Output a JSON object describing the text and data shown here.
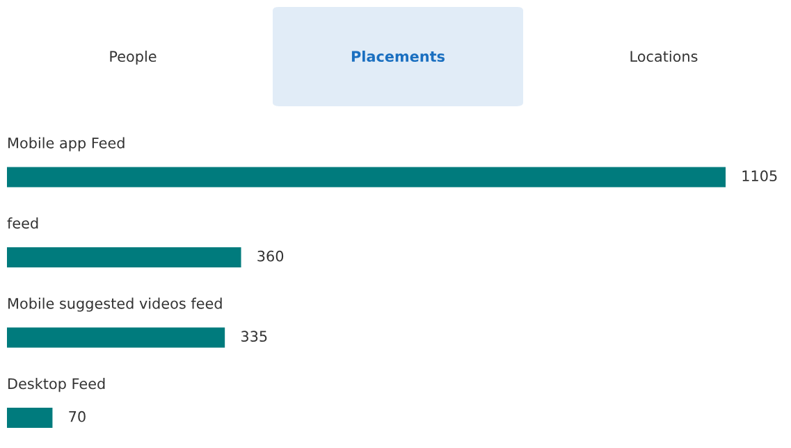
{
  "chart_data": {
    "type": "bar",
    "orientation": "horizontal",
    "title": "Placements",
    "annotations": [
      "People",
      "Locations"
    ],
    "categories": [
      "Mobile app Feed",
      "feed",
      "Mobile suggested videos feed",
      "Desktop Feed"
    ],
    "values": [
      1105,
      360,
      335,
      70
    ],
    "color": "#007b7d",
    "data_labels": true
  }
}
